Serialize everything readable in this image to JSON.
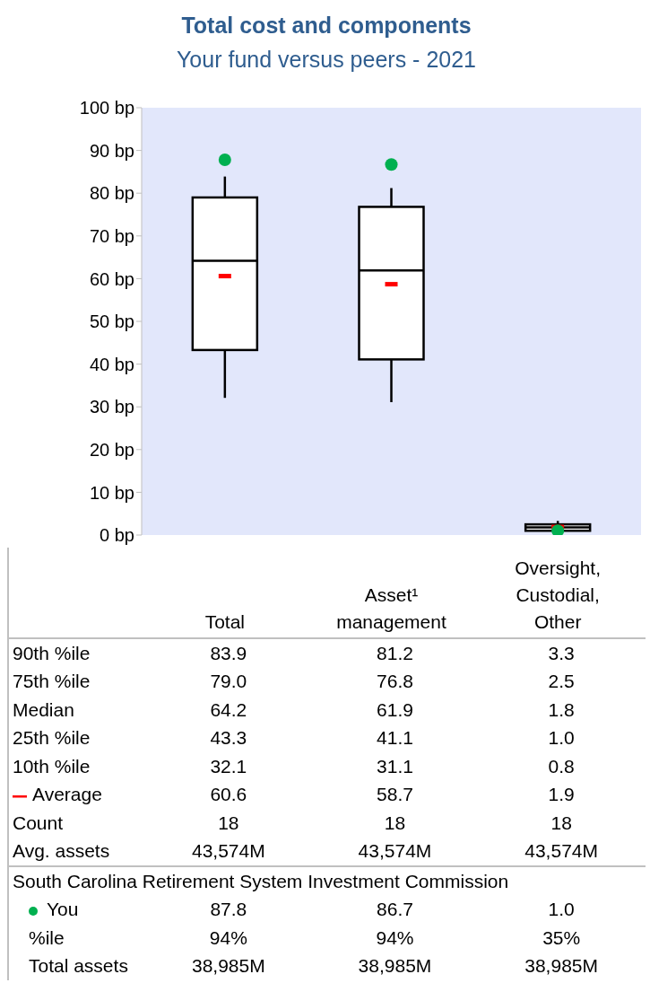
{
  "chart_data": {
    "type": "box",
    "title": "Total cost and components",
    "subtitle": "Your fund versus peers - 2021",
    "categories": [
      "Total",
      "Asset¹ management",
      "Oversight, Custodial, Other"
    ],
    "ylim": [
      0,
      100
    ],
    "yticks": [
      {
        "value": 0,
        "label": "0 bp"
      },
      {
        "value": 10,
        "label": "10 bp"
      },
      {
        "value": 20,
        "label": "20 bp"
      },
      {
        "value": 30,
        "label": "30 bp"
      },
      {
        "value": 40,
        "label": "40 bp"
      },
      {
        "value": 50,
        "label": "50 bp"
      },
      {
        "value": 60,
        "label": "60 bp"
      },
      {
        "value": 70,
        "label": "70 bp"
      },
      {
        "value": 80,
        "label": "80 bp"
      },
      {
        "value": 90,
        "label": "90 bp"
      },
      {
        "value": 100,
        "label": "100 bp"
      }
    ],
    "grid": false,
    "legend": "bottom left",
    "legend_title": "South Carolina Retirement System Investment Commission",
    "series": [
      {
        "type": "box",
        "color": "#000000",
        "boxes": [
          {
            "low": 32.1,
            "q1": 43.3,
            "median": 64.2,
            "q3": 79.0,
            "high": 83.9
          },
          {
            "low": 31.1,
            "q1": 41.1,
            "median": 61.9,
            "q3": 76.8,
            "high": 81.2
          },
          {
            "low": 0.8,
            "q1": 1.0,
            "median": 1.8,
            "q3": 2.5,
            "high": 3.3
          }
        ]
      },
      {
        "type": "scatter",
        "name": "Average",
        "color": "#ff0000",
        "x": [
          "Total",
          "Asset¹ management",
          "Oversight, Custodial, Other"
        ],
        "values": [
          60.6,
          58.7,
          1.9
        ]
      },
      {
        "type": "scatter",
        "name": "You",
        "color": "#00b050",
        "marker": "circle",
        "x": [
          "Total",
          "Asset¹ management",
          "Oversight, Custodial, Other"
        ],
        "values": [
          87.8,
          86.7,
          1.0
        ]
      }
    ],
    "annotations": [
      "90th %ile",
      "83.9",
      "81.2",
      "3.3",
      "75th %ile",
      "79.0",
      "76.8",
      "2.5",
      "Median",
      "64.2",
      "61.9",
      "1.8",
      "25th %ile",
      "43.3",
      "41.1",
      "1.0",
      "10th %ile",
      "32.1",
      "31.1",
      "0.8",
      "60.6",
      "58.7",
      "1.9",
      "Count",
      "18",
      "18",
      "18",
      "Avg. assets",
      "43,574M",
      "43,574M",
      "43,574M",
      "87.8",
      "86.7",
      "1.0",
      "%ile",
      "94%",
      "94%",
      "35%",
      "Total assets",
      "38,985M",
      "38,985M",
      "38,985M"
    ]
  }
}
